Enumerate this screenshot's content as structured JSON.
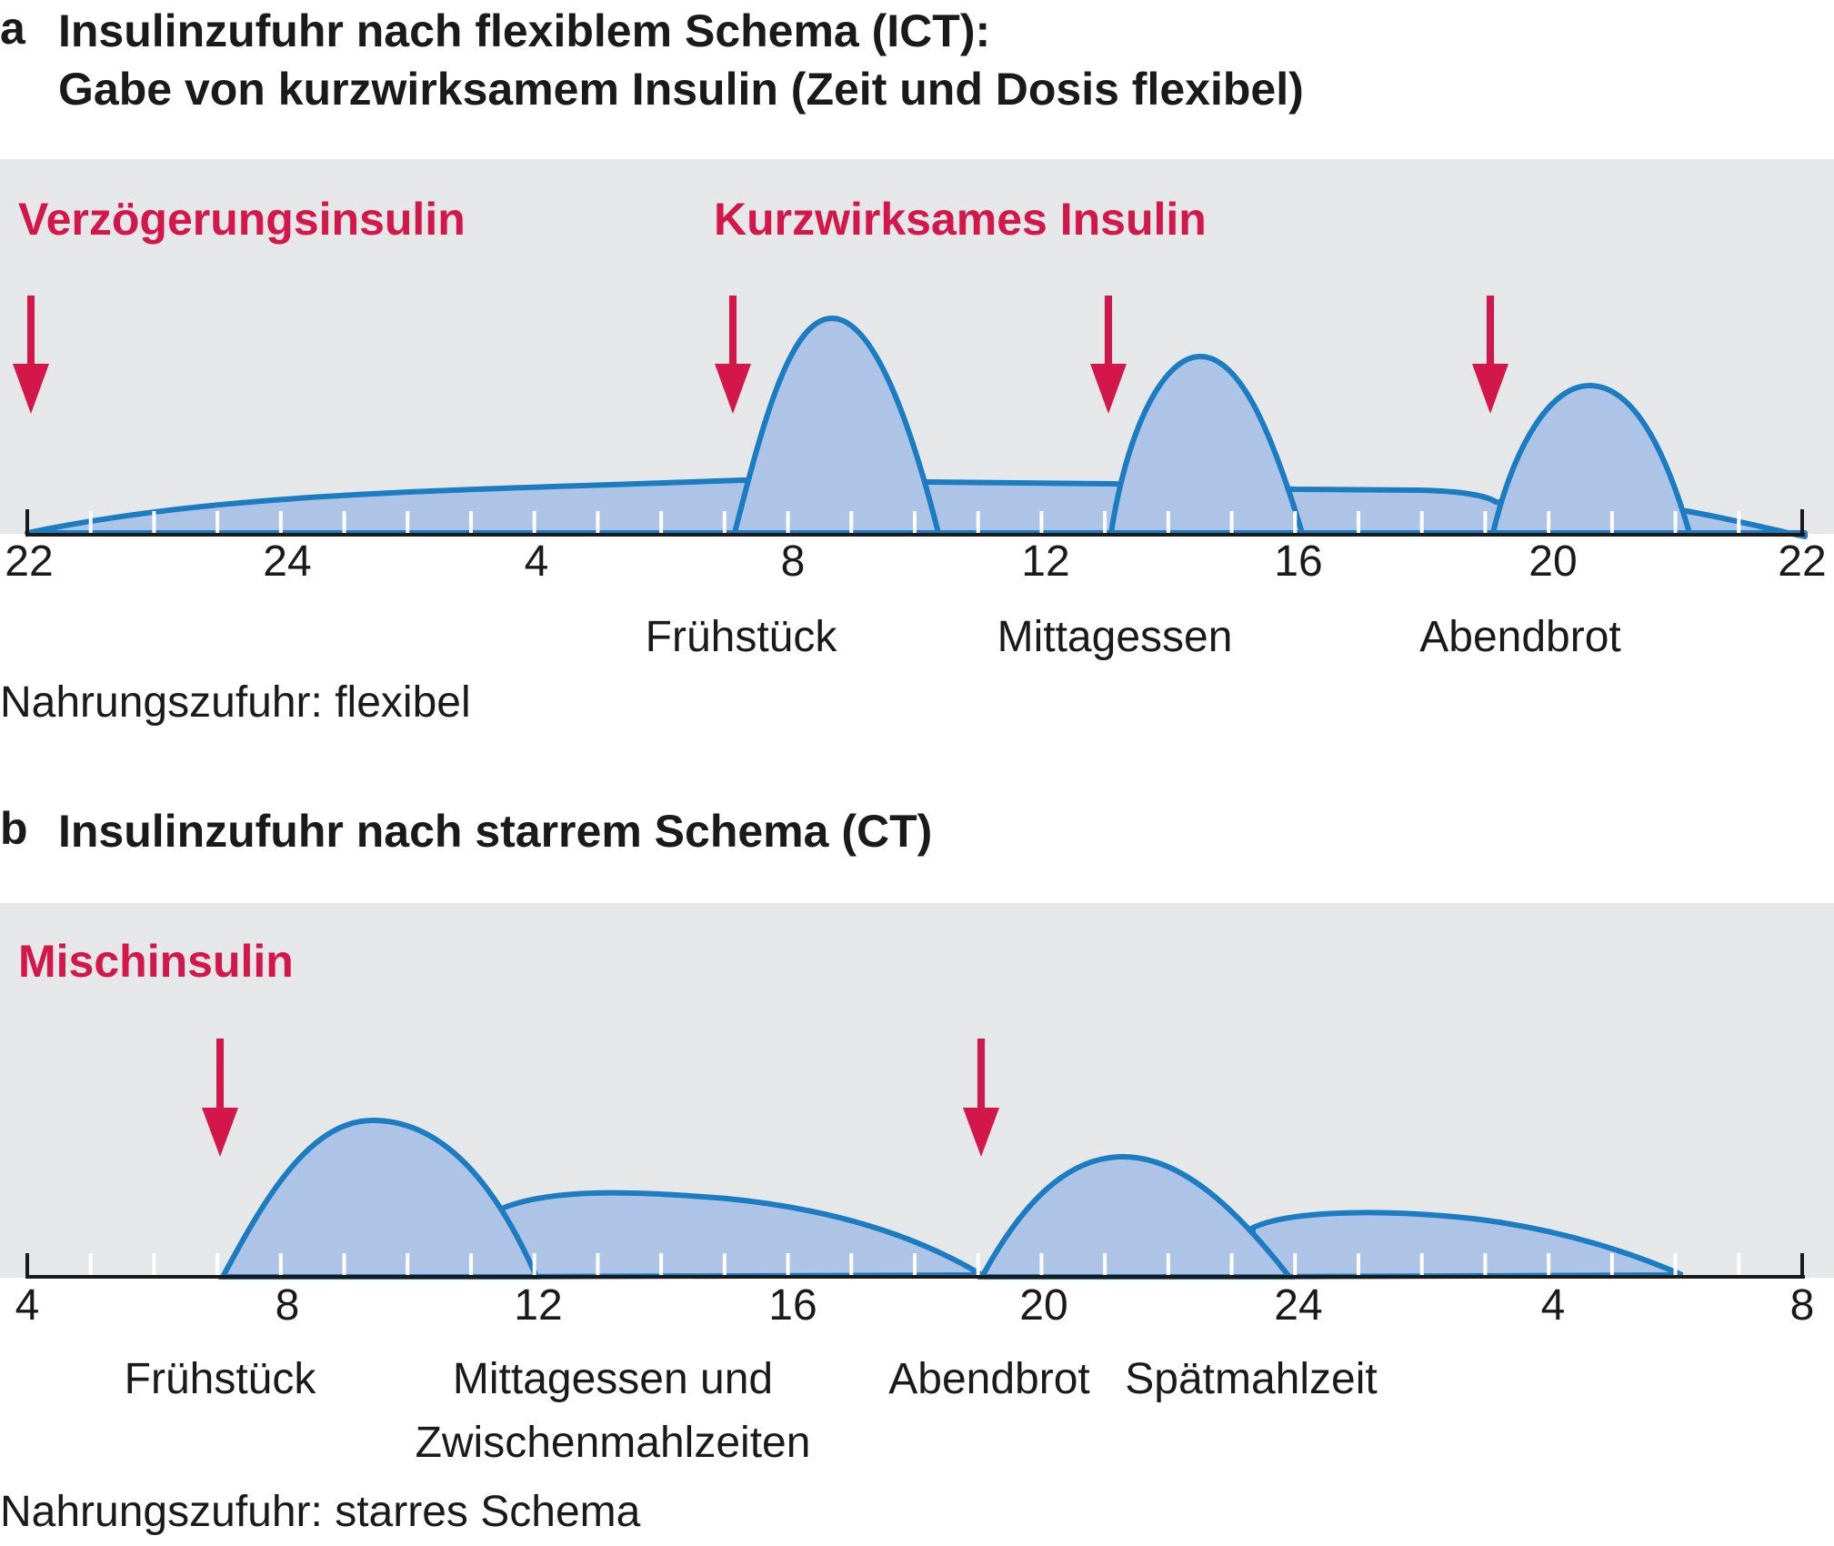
{
  "panel_a": {
    "letter": "a",
    "title_line1": "Insulinzufuhr nach flexiblem Schema (ICT):",
    "title_line2": "Gabe von kurzwirksamem Insulin (Zeit und Dosis flexibel)",
    "insulin_labels": [
      "Verzögerungsinsulin",
      "Kurzwirksames Insulin"
    ],
    "axis_ticks": [
      "22",
      "24",
      "4",
      "8",
      "12",
      "16",
      "20",
      "22"
    ],
    "meals": [
      "Frühstück",
      "Mittagessen",
      "Abendbrot"
    ],
    "note": "Nahrungszufuhr: flexibel"
  },
  "panel_b": {
    "letter": "b",
    "title": "Insulinzufuhr nach starrem Schema (CT)",
    "insulin_labels": [
      "Mischinsulin"
    ],
    "axis_ticks": [
      "4",
      "8",
      "12",
      "16",
      "20",
      "24",
      "4",
      "8"
    ],
    "meals": [
      "Frühstück",
      "Mittagessen und",
      "Zwischenmahlzeiten",
      "Abendbrot",
      "Spätmahlzeit"
    ],
    "note": "Nahrungszufuhr: starres Schema"
  },
  "colors": {
    "band": "#e6e7e9",
    "curve_stroke": "#1b7cc2",
    "curve_fill": "#aec4e6",
    "arrow": "#d4174a",
    "axis": "#1a1a1a"
  }
}
